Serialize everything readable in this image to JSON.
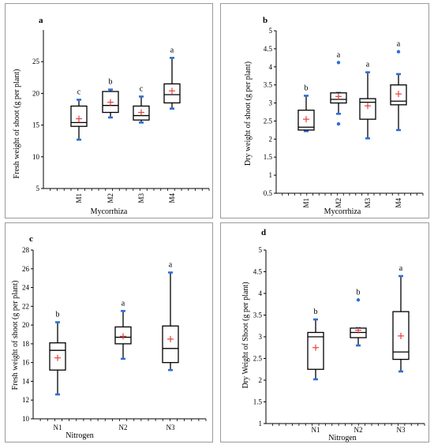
{
  "chart_data": [
    {
      "panel": "a",
      "type": "box",
      "xlabel": "Mycorrhiza",
      "ylabel": "Fresh weight of shoot (g per plant)",
      "ylim": [
        5,
        30
      ],
      "yticks": [
        5,
        10,
        15,
        20,
        25
      ],
      "categories": [
        "M1",
        "M2",
        "M3",
        "M4"
      ],
      "rotate_x": true,
      "series": [
        {
          "category": "M1",
          "whisker_low": 12.7,
          "q1": 14.8,
          "median": 15.4,
          "q3": 18.0,
          "whisker_high": 19.0,
          "mean": 16.0,
          "outliers": [],
          "letter": "c"
        },
        {
          "category": "M2",
          "whisker_low": 16.2,
          "q1": 17.0,
          "median": 18.1,
          "q3": 20.3,
          "whisker_high": 20.6,
          "mean": 18.6,
          "outliers": [],
          "letter": "b"
        },
        {
          "category": "M3",
          "whisker_low": 15.4,
          "q1": 15.8,
          "median": 16.5,
          "q3": 18.0,
          "whisker_high": 19.5,
          "mean": 17.0,
          "outliers": [],
          "letter": "c"
        },
        {
          "category": "M4",
          "whisker_low": 17.6,
          "q1": 18.5,
          "median": 19.8,
          "q3": 21.5,
          "whisker_high": 25.6,
          "mean": 20.4,
          "outliers": [],
          "letter": "a"
        }
      ]
    },
    {
      "panel": "b",
      "type": "box",
      "xlabel": "Mycorrhiza",
      "ylabel": "Dry weight of shoot (g per plant)",
      "ylim": [
        0.5,
        5
      ],
      "yticks": [
        0.5,
        1,
        1.5,
        2,
        2.5,
        3,
        3.5,
        4,
        4.5,
        5
      ],
      "categories": [
        "M1",
        "M2",
        "M3",
        "M4"
      ],
      "rotate_x": true,
      "series": [
        {
          "category": "M1",
          "whisker_low": 2.22,
          "q1": 2.25,
          "median": 2.33,
          "q3": 2.8,
          "whisker_high": 3.2,
          "mean": 2.55,
          "outliers": [],
          "letter": "b"
        },
        {
          "category": "M2",
          "whisker_low": 2.7,
          "q1": 3.0,
          "median": 3.1,
          "q3": 3.28,
          "whisker_high": 3.28,
          "mean": 3.18,
          "outliers": [
            4.12,
            2.42
          ],
          "letter": "a"
        },
        {
          "category": "M3",
          "whisker_low": 2.02,
          "q1": 2.55,
          "median": 3.02,
          "q3": 3.12,
          "whisker_high": 3.85,
          "mean": 2.92,
          "outliers": [],
          "letter": "a"
        },
        {
          "category": "M4",
          "whisker_low": 2.25,
          "q1": 2.95,
          "median": 3.05,
          "q3": 3.5,
          "whisker_high": 3.8,
          "mean": 3.25,
          "outliers": [
            4.42
          ],
          "letter": "a"
        }
      ]
    },
    {
      "panel": "c",
      "type": "box",
      "xlabel": "Nitrogen",
      "ylabel": "Fresh weight of shoot (g per plant)",
      "ylim": [
        10,
        28
      ],
      "yticks": [
        10,
        12,
        14,
        16,
        18,
        20,
        22,
        24,
        26,
        28
      ],
      "categories": [
        "N1",
        "N2",
        "N3"
      ],
      "rotate_x": false,
      "series": [
        {
          "category": "N1",
          "whisker_low": 12.6,
          "q1": 15.2,
          "median": 17.3,
          "q3": 18.1,
          "whisker_high": 20.3,
          "mean": 16.5,
          "outliers": [],
          "letter": "b"
        },
        {
          "category": "N2",
          "whisker_low": 16.4,
          "q1": 18.0,
          "median": 18.7,
          "q3": 19.8,
          "whisker_high": 21.5,
          "mean": 18.8,
          "outliers": [],
          "letter": "a"
        },
        {
          "category": "N3",
          "whisker_low": 15.2,
          "q1": 16.0,
          "median": 17.5,
          "q3": 19.9,
          "whisker_high": 25.6,
          "mean": 18.5,
          "outliers": [],
          "letter": "a"
        }
      ]
    },
    {
      "panel": "d",
      "type": "box",
      "xlabel": "Nitrogen",
      "ylabel": "Dry Weight of Shoot (g per plant)",
      "ylim": [
        1,
        5
      ],
      "yticks": [
        1,
        1.5,
        2,
        2.5,
        3,
        3.5,
        4,
        4.5,
        5
      ],
      "categories": [
        "N1",
        "N2",
        "N3"
      ],
      "rotate_x": false,
      "series": [
        {
          "category": "N1",
          "whisker_low": 2.02,
          "q1": 2.25,
          "median": 3.0,
          "q3": 3.1,
          "whisker_high": 3.4,
          "mean": 2.75,
          "outliers": [],
          "letter": "b"
        },
        {
          "category": "N2",
          "whisker_low": 2.8,
          "q1": 2.98,
          "median": 3.1,
          "q3": 3.2,
          "whisker_high": 3.2,
          "mean": 3.15,
          "outliers": [
            3.85
          ],
          "letter": "b"
        },
        {
          "category": "N3",
          "whisker_low": 2.2,
          "q1": 2.48,
          "median": 2.65,
          "q3": 3.58,
          "whisker_high": 4.4,
          "mean": 3.02,
          "outliers": [],
          "letter": "a"
        }
      ]
    }
  ],
  "style": {
    "box_color": "#000000",
    "whisker_end_color": "#2e6fd6",
    "mean_marker_color": "#e8413b",
    "minor_tick_color": "#000000"
  }
}
